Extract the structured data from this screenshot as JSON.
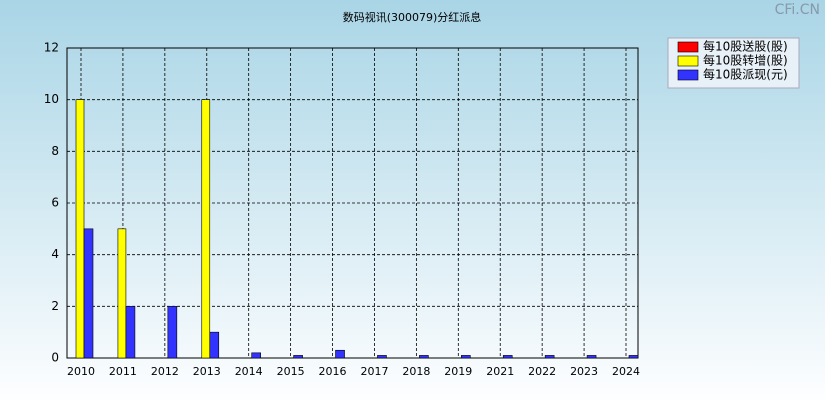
{
  "chart_data": {
    "type": "bar",
    "title": "数码视讯(300079)分红派息",
    "watermark": "CFi.CN",
    "categories": [
      "2010",
      "2011",
      "2012",
      "2013",
      "2014",
      "2015",
      "2016",
      "2017",
      "2018",
      "2019",
      "2021",
      "2022",
      "2023",
      "2024"
    ],
    "series": [
      {
        "name": "每10股送股(股)",
        "color": "#ff0000",
        "values": [
          0,
          0,
          0,
          0,
          0,
          0,
          0,
          0,
          0,
          0,
          0,
          0,
          0,
          0
        ]
      },
      {
        "name": "每10股转增(股)",
        "color": "#ffff00",
        "values": [
          10,
          5,
          0,
          10,
          0,
          0,
          0,
          0,
          0,
          0,
          0,
          0,
          0,
          0
        ]
      },
      {
        "name": "每10股派现(元)",
        "color": "#3333ff",
        "values": [
          5,
          2,
          2,
          1,
          0.2,
          0.1,
          0.3,
          0.1,
          0.1,
          0.1,
          0.1,
          0.1,
          0.1,
          0.1
        ]
      }
    ],
    "ylim": [
      0,
      12
    ],
    "yticks": [
      0,
      2,
      4,
      6,
      8,
      10,
      12
    ],
    "grid": true,
    "legend": "top-right"
  }
}
